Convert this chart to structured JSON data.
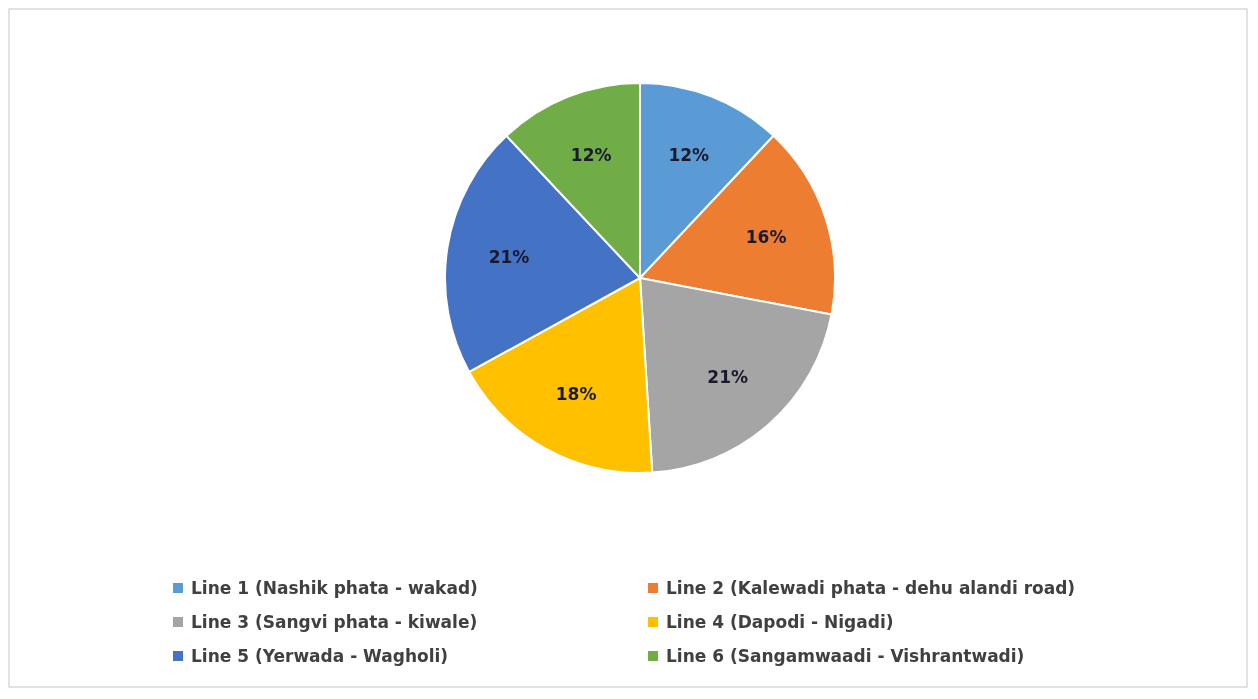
{
  "chart_data": {
    "type": "pie",
    "categories": [
      "Line 1 (Nashik phata - wakad)",
      "Line 2 (Kalewadi phata - dehu alandi road)",
      "Line 3 (Sangvi phata - kiwale)",
      "Line 4 (Dapodi - Nigadi)",
      "Line 5 (Yerwada - Wagholi)",
      "Line 6 (Sangamwaadi - Vishrantwadi)"
    ],
    "values": [
      12,
      16,
      21,
      18,
      21,
      12
    ],
    "colors": [
      "#5b9bd5",
      "#ed7d31",
      "#a5a5a5",
      "#ffc000",
      "#4472c4",
      "#70ad47"
    ],
    "value_labels": [
      "12%",
      "16%",
      "21%",
      "18%",
      "21%",
      "12%"
    ],
    "legend": "bottom"
  }
}
